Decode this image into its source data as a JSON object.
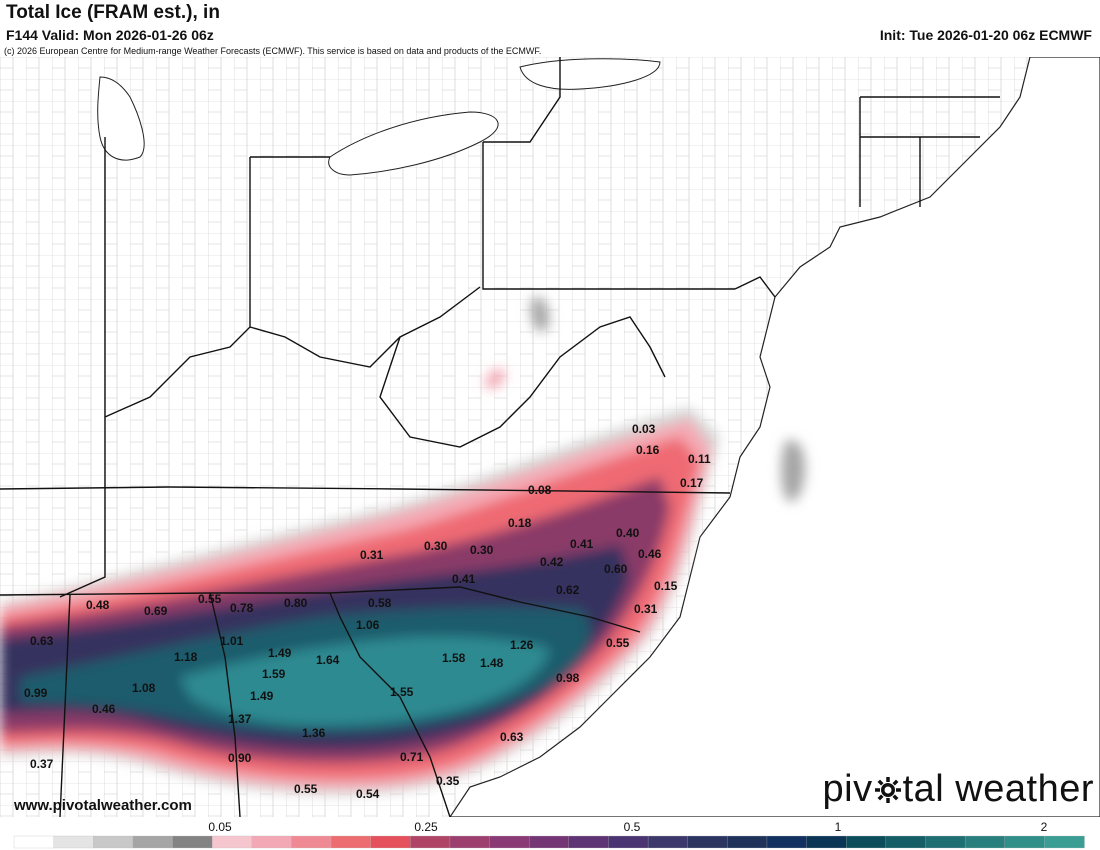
{
  "header": {
    "title": "Total Ice (FRAM est.), in",
    "valid": "F144 Valid: Mon 2026-01-26 06z",
    "init": "Init: Tue 2026-01-20 06z ECMWF",
    "copyright": "(c) 2026 European Centre for Medium-range Weather Forecasts (ECMWF). This service is based on data and products of the ECMWF."
  },
  "footer": {
    "url": "www.pivotalweather.com",
    "brand_left": "piv",
    "brand_right": "tal weather"
  },
  "colors": {
    "trace": "#d0d0d0",
    "light": "#f4a9b3",
    "moderate": "#ef6b73",
    "heavy": "#8a3a68",
    "extreme": "#34335e",
    "max": "#1d5b6c",
    "peak": "#2d8a91"
  },
  "colorbar": {
    "tick_labels": [
      "0.05",
      "0.25",
      "0.5",
      "1",
      "2"
    ],
    "colors": [
      "#ffffff",
      "#e4e4e4",
      "#c8c8c8",
      "#a5a5a5",
      "#838383",
      "#f6c6cf",
      "#f3a8b5",
      "#ef8a94",
      "#ec6c70",
      "#e4505c",
      "#b04466",
      "#9c3f6e",
      "#8a3a74",
      "#753676",
      "#5e3474",
      "#4a3572",
      "#3d386c",
      "#2c3560",
      "#1e325a",
      "#123060",
      "#0a3554",
      "#0c4d5c",
      "#155e68",
      "#1e6f72",
      "#287f7d",
      "#318f89",
      "#3a9e95"
    ]
  },
  "labels": [
    {
      "text": "0.03"
    },
    {
      "text": "0.16"
    },
    {
      "text": "0.11"
    },
    {
      "text": "0.17"
    },
    {
      "text": "0.08"
    },
    {
      "text": "0.18"
    },
    {
      "text": "0.40"
    },
    {
      "text": "0.41"
    },
    {
      "text": "0.46"
    },
    {
      "text": "0.30"
    },
    {
      "text": "0.30"
    },
    {
      "text": "0.31"
    },
    {
      "text": "0.42"
    },
    {
      "text": "0.60"
    },
    {
      "text": "0.15"
    },
    {
      "text": "0.41"
    },
    {
      "text": "0.62"
    },
    {
      "text": "0.31"
    },
    {
      "text": "0.55"
    },
    {
      "text": "0.48"
    },
    {
      "text": "0.69"
    },
    {
      "text": "0.78"
    },
    {
      "text": "0.80"
    },
    {
      "text": "0.58"
    },
    {
      "text": "0.63"
    },
    {
      "text": "1.01"
    },
    {
      "text": "1.06"
    },
    {
      "text": "1.26"
    },
    {
      "text": "0.55"
    },
    {
      "text": "1.18"
    },
    {
      "text": "1.49"
    },
    {
      "text": "1.64"
    },
    {
      "text": "1.58"
    },
    {
      "text": "1.48"
    },
    {
      "text": "1.59"
    },
    {
      "text": "0.98"
    },
    {
      "text": "0.99"
    },
    {
      "text": "1.08"
    },
    {
      "text": "1.49"
    },
    {
      "text": "1.55"
    },
    {
      "text": "0.46"
    },
    {
      "text": "1.37"
    },
    {
      "text": "0.63"
    },
    {
      "text": "1.36"
    },
    {
      "text": "0.90"
    },
    {
      "text": "0.71"
    },
    {
      "text": "0.37"
    },
    {
      "text": "0.35"
    },
    {
      "text": "0.55"
    },
    {
      "text": "0.54"
    }
  ]
}
